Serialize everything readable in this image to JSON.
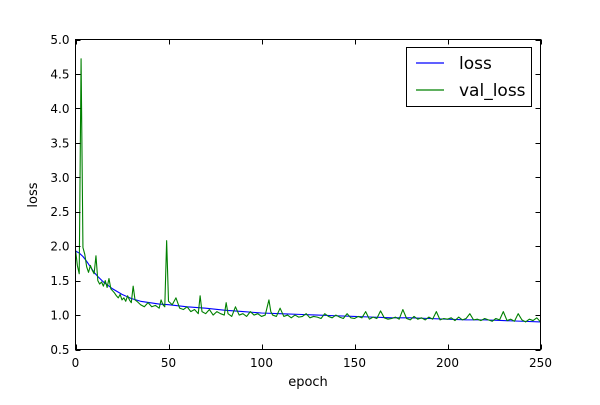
{
  "chart_data": {
    "type": "line",
    "title": "",
    "xlabel": "epoch",
    "ylabel": "loss",
    "xlim": [
      0,
      250
    ],
    "ylim": [
      0.5,
      5.0
    ],
    "x_ticks": [
      0,
      50,
      100,
      150,
      200,
      250
    ],
    "x_tick_labels": [
      "0",
      "50",
      "100",
      "150",
      "200",
      "250"
    ],
    "y_ticks": [
      0.5,
      1.0,
      1.5,
      2.0,
      2.5,
      3.0,
      3.5,
      4.0,
      4.5,
      5.0
    ],
    "y_tick_labels": [
      "0.5",
      "1.0",
      "1.5",
      "2.0",
      "2.5",
      "3.0",
      "3.5",
      "4.0",
      "4.5",
      "5.0"
    ],
    "grid": false,
    "legend_position": "top-right",
    "series": [
      {
        "name": "loss",
        "color": "#0000ff",
        "x": [
          0,
          2,
          4,
          6,
          8,
          10,
          12,
          15,
          20,
          25,
          30,
          35,
          40,
          45,
          50,
          60,
          70,
          80,
          90,
          100,
          110,
          120,
          130,
          140,
          150,
          160,
          170,
          180,
          190,
          200,
          210,
          220,
          230,
          240,
          250
        ],
        "y": [
          1.93,
          1.9,
          1.85,
          1.78,
          1.7,
          1.62,
          1.56,
          1.48,
          1.38,
          1.3,
          1.24,
          1.2,
          1.18,
          1.16,
          1.15,
          1.12,
          1.1,
          1.07,
          1.05,
          1.03,
          1.02,
          1.01,
          1.0,
          0.99,
          0.98,
          0.97,
          0.96,
          0.96,
          0.95,
          0.94,
          0.93,
          0.93,
          0.92,
          0.91,
          0.9
        ]
      },
      {
        "name": "val_loss",
        "color": "#008000",
        "x": [
          0,
          1,
          2,
          3,
          4,
          5,
          6,
          7,
          8,
          9,
          10,
          11,
          12,
          13,
          14,
          15,
          16,
          17,
          18,
          19,
          20,
          21,
          22,
          23,
          24,
          25,
          26,
          27,
          28,
          29,
          30,
          31,
          32,
          33,
          35,
          37,
          39,
          41,
          43,
          45,
          46,
          47,
          48,
          49,
          50,
          52,
          54,
          56,
          58,
          60,
          62,
          64,
          66,
          67,
          68,
          70,
          72,
          74,
          76,
          78,
          80,
          81,
          82,
          84,
          86,
          88,
          90,
          92,
          94,
          96,
          98,
          100,
          102,
          104,
          105,
          106,
          108,
          110,
          112,
          114,
          116,
          118,
          120,
          122,
          124,
          126,
          128,
          130,
          132,
          134,
          136,
          138,
          140,
          142,
          144,
          146,
          148,
          150,
          152,
          154,
          156,
          158,
          160,
          162,
          164,
          166,
          168,
          170,
          172,
          174,
          176,
          178,
          180,
          182,
          184,
          186,
          188,
          190,
          192,
          194,
          196,
          198,
          200,
          202,
          204,
          206,
          208,
          210,
          212,
          214,
          216,
          218,
          220,
          222,
          224,
          226,
          228,
          230,
          232,
          234,
          236,
          238,
          240,
          242,
          244,
          246,
          248,
          250
        ],
        "y": [
          1.95,
          1.72,
          1.6,
          4.72,
          1.98,
          1.88,
          1.7,
          1.62,
          1.72,
          1.65,
          1.6,
          1.86,
          1.5,
          1.45,
          1.48,
          1.42,
          1.5,
          1.4,
          1.53,
          1.38,
          1.35,
          1.32,
          1.28,
          1.25,
          1.3,
          1.22,
          1.25,
          1.2,
          1.28,
          1.22,
          1.18,
          1.42,
          1.22,
          1.2,
          1.15,
          1.12,
          1.18,
          1.12,
          1.14,
          1.1,
          1.22,
          1.15,
          1.12,
          2.08,
          1.2,
          1.15,
          1.25,
          1.1,
          1.08,
          1.12,
          1.05,
          1.08,
          1.02,
          1.28,
          1.05,
          1.02,
          1.08,
          1.0,
          1.05,
          1.02,
          1.0,
          1.18,
          1.02,
          0.98,
          1.12,
          1.0,
          1.02,
          0.98,
          1.05,
          1.0,
          1.02,
          0.98,
          1.0,
          1.22,
          1.05,
          1.0,
          0.98,
          1.1,
          0.98,
          1.0,
          0.96,
          1.0,
          0.97,
          0.98,
          1.02,
          0.96,
          0.98,
          0.97,
          0.95,
          1.02,
          0.98,
          0.96,
          1.0,
          0.97,
          0.95,
          1.02,
          0.96,
          0.95,
          0.98,
          0.96,
          1.05,
          0.94,
          0.97,
          0.95,
          1.06,
          0.96,
          0.94,
          0.95,
          0.97,
          0.94,
          1.08,
          0.95,
          0.93,
          0.98,
          0.94,
          0.96,
          0.93,
          0.97,
          0.94,
          1.05,
          0.93,
          0.95,
          0.94,
          0.96,
          0.92,
          0.97,
          0.93,
          0.95,
          1.02,
          0.93,
          0.94,
          0.92,
          0.95,
          0.93,
          0.91,
          0.95,
          0.93,
          1.05,
          0.92,
          0.94,
          0.91,
          1.02,
          0.93,
          0.9,
          0.94,
          0.92,
          0.96,
          0.9
        ]
      }
    ]
  }
}
